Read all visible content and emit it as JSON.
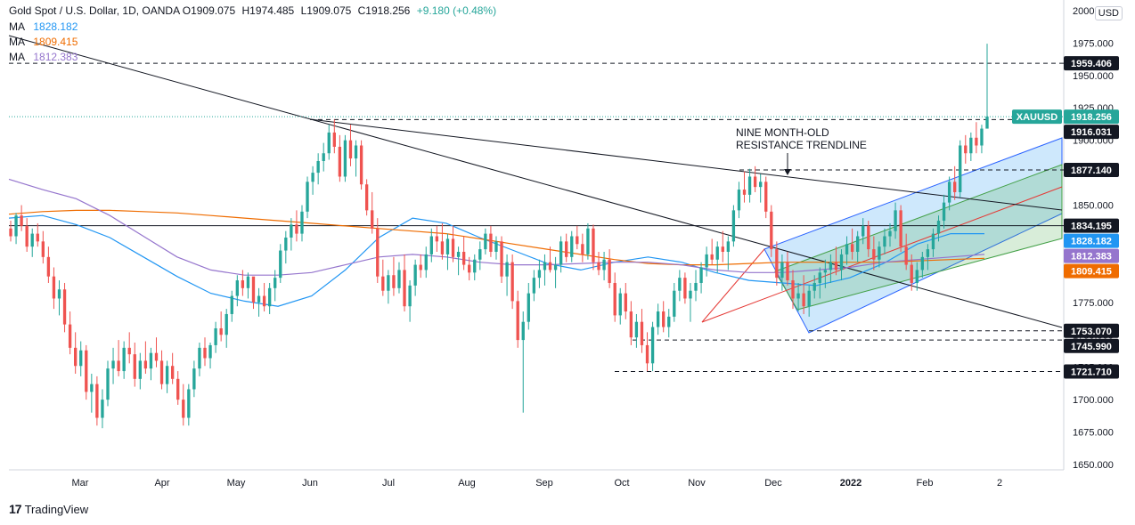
{
  "header": {
    "title": "Gold Spot / U.S. Dollar, 1D, OANDA",
    "o": "O1909.075",
    "h": "H1974.485",
    "l": "L1909.075",
    "c": "C1918.256",
    "change": "+9.180 (+0.48%)",
    "change_color": "#26a69a"
  },
  "ma_legend": [
    {
      "label": "MA",
      "value": "1828.182",
      "color": "#2196f3"
    },
    {
      "label": "MA",
      "value": "1809.415",
      "color": "#ef6c00"
    },
    {
      "label": "MA",
      "value": "1812.383",
      "color": "#9575cd"
    }
  ],
  "currency": "USD",
  "annotation": [
    "NINE MONTH-OLD",
    "RESISTANCE TRENDLINE"
  ],
  "watermark": "TradingView",
  "chart_data": {
    "type": "candlestick",
    "symbol": "XAUUSD",
    "y_axis": {
      "min": 1650,
      "max": 2000,
      "ticks": [
        "1650.000",
        "1675.000",
        "1700.000",
        "1725.000",
        "1750.000",
        "1775.000",
        "1800.000",
        "1825.000",
        "1850.000",
        "1875.000",
        "1900.000",
        "1925.000",
        "1950.000",
        "1975.000",
        "2000.000"
      ]
    },
    "x_labels": [
      "Mar",
      "Apr",
      "May",
      "Jun",
      "Jul",
      "Aug",
      "Sep",
      "Oct",
      "Nov",
      "Dec",
      "2022",
      "Feb",
      "2"
    ],
    "last_price": 1918.256,
    "price_labels": [
      {
        "text": "1959.406",
        "value": 1959.406,
        "style": "dark"
      },
      {
        "text": "1918.256",
        "value": 1918.256,
        "style": "green",
        "tag": "XAUUSD"
      },
      {
        "text": "1916.031",
        "value": 1916.031,
        "style": "dark"
      },
      {
        "text": "1877.140",
        "value": 1877.14,
        "style": "dark"
      },
      {
        "text": "1834.195",
        "value": 1834.195,
        "style": "dark"
      },
      {
        "text": "1828.182",
        "value": 1828.182,
        "style": "blue"
      },
      {
        "text": "1812.383",
        "value": 1812.383,
        "style": "purple"
      },
      {
        "text": "1809.415",
        "value": 1809.415,
        "style": "orange"
      },
      {
        "text": "1753.070",
        "value": 1753.07,
        "style": "dark"
      },
      {
        "text": "1745.990",
        "value": 1745.99,
        "style": "dark"
      },
      {
        "text": "1721.710",
        "value": 1721.71,
        "style": "dark"
      }
    ],
    "candles": [
      [
        1832,
        1838,
        1822,
        1826
      ],
      [
        1826,
        1844,
        1820,
        1842
      ],
      [
        1842,
        1850,
        1830,
        1834
      ],
      [
        1834,
        1840,
        1814,
        1818
      ],
      [
        1818,
        1832,
        1810,
        1828
      ],
      [
        1828,
        1836,
        1818,
        1822
      ],
      [
        1822,
        1830,
        1805,
        1810
      ],
      [
        1810,
        1818,
        1790,
        1795
      ],
      [
        1795,
        1802,
        1770,
        1778
      ],
      [
        1778,
        1792,
        1765,
        1785
      ],
      [
        1785,
        1790,
        1752,
        1758
      ],
      [
        1758,
        1768,
        1735,
        1740
      ],
      [
        1740,
        1752,
        1720,
        1726
      ],
      [
        1726,
        1745,
        1718,
        1738
      ],
      [
        1738,
        1742,
        1700,
        1706
      ],
      [
        1706,
        1720,
        1690,
        1712
      ],
      [
        1712,
        1718,
        1680,
        1686
      ],
      [
        1686,
        1708,
        1678,
        1700
      ],
      [
        1700,
        1730,
        1695,
        1724
      ],
      [
        1724,
        1740,
        1712,
        1730
      ],
      [
        1730,
        1746,
        1718,
        1722
      ],
      [
        1722,
        1745,
        1716,
        1740
      ],
      [
        1740,
        1752,
        1728,
        1735
      ],
      [
        1735,
        1744,
        1710,
        1716
      ],
      [
        1716,
        1736,
        1708,
        1730
      ],
      [
        1730,
        1745,
        1720,
        1724
      ],
      [
        1724,
        1740,
        1715,
        1736
      ],
      [
        1736,
        1748,
        1725,
        1730
      ],
      [
        1730,
        1738,
        1708,
        1712
      ],
      [
        1712,
        1730,
        1705,
        1726
      ],
      [
        1726,
        1736,
        1712,
        1716
      ],
      [
        1716,
        1722,
        1696,
        1700
      ],
      [
        1700,
        1712,
        1680,
        1686
      ],
      [
        1686,
        1712,
        1680,
        1708
      ],
      [
        1708,
        1730,
        1702,
        1724
      ],
      [
        1724,
        1744,
        1718,
        1740
      ],
      [
        1740,
        1748,
        1726,
        1732
      ],
      [
        1732,
        1744,
        1724,
        1742
      ],
      [
        1742,
        1760,
        1736,
        1755
      ],
      [
        1755,
        1768,
        1745,
        1750
      ],
      [
        1750,
        1770,
        1740,
        1766
      ],
      [
        1766,
        1784,
        1760,
        1780
      ],
      [
        1780,
        1796,
        1772,
        1792
      ],
      [
        1792,
        1800,
        1780,
        1786
      ],
      [
        1786,
        1798,
        1778,
        1795
      ],
      [
        1795,
        1792,
        1770,
        1775
      ],
      [
        1775,
        1786,
        1764,
        1780
      ],
      [
        1780,
        1790,
        1768,
        1772
      ],
      [
        1772,
        1790,
        1766,
        1786
      ],
      [
        1786,
        1800,
        1776,
        1794
      ],
      [
        1794,
        1820,
        1790,
        1815
      ],
      [
        1815,
        1830,
        1805,
        1825
      ],
      [
        1825,
        1840,
        1815,
        1835
      ],
      [
        1835,
        1846,
        1822,
        1828
      ],
      [
        1828,
        1850,
        1822,
        1845
      ],
      [
        1845,
        1872,
        1840,
        1868
      ],
      [
        1868,
        1880,
        1858,
        1875
      ],
      [
        1875,
        1890,
        1866,
        1884
      ],
      [
        1884,
        1898,
        1876,
        1890
      ],
      [
        1890,
        1912,
        1885,
        1906
      ],
      [
        1906,
        1916,
        1890,
        1895
      ],
      [
        1895,
        1904,
        1868,
        1872
      ],
      [
        1872,
        1904,
        1868,
        1900
      ],
      [
        1900,
        1912,
        1880,
        1886
      ],
      [
        1886,
        1900,
        1872,
        1896
      ],
      [
        1896,
        1900,
        1862,
        1866
      ],
      [
        1866,
        1870,
        1842,
        1846
      ],
      [
        1846,
        1860,
        1828,
        1832
      ],
      [
        1832,
        1840,
        1790,
        1795
      ],
      [
        1795,
        1808,
        1780,
        1784
      ],
      [
        1784,
        1800,
        1774,
        1796
      ],
      [
        1796,
        1810,
        1780,
        1786
      ],
      [
        1786,
        1806,
        1782,
        1800
      ],
      [
        1800,
        1812,
        1768,
        1772
      ],
      [
        1772,
        1792,
        1760,
        1788
      ],
      [
        1788,
        1808,
        1780,
        1804
      ],
      [
        1804,
        1812,
        1794,
        1800
      ],
      [
        1800,
        1818,
        1794,
        1812
      ],
      [
        1812,
        1832,
        1806,
        1826
      ],
      [
        1826,
        1834,
        1814,
        1822
      ],
      [
        1822,
        1836,
        1808,
        1812
      ],
      [
        1812,
        1828,
        1800,
        1824
      ],
      [
        1824,
        1834,
        1806,
        1810
      ],
      [
        1810,
        1818,
        1796,
        1814
      ],
      [
        1814,
        1826,
        1800,
        1804
      ],
      [
        1804,
        1810,
        1792,
        1798
      ],
      [
        1798,
        1812,
        1792,
        1808
      ],
      [
        1808,
        1822,
        1800,
        1816
      ],
      [
        1816,
        1832,
        1812,
        1828
      ],
      [
        1828,
        1834,
        1810,
        1814
      ],
      [
        1814,
        1826,
        1808,
        1822
      ],
      [
        1822,
        1826,
        1790,
        1795
      ],
      [
        1795,
        1812,
        1780,
        1806
      ],
      [
        1806,
        1812,
        1770,
        1776
      ],
      [
        1776,
        1784,
        1740,
        1746
      ],
      [
        1746,
        1768,
        1690,
        1760
      ],
      [
        1760,
        1790,
        1754,
        1782
      ],
      [
        1782,
        1800,
        1776,
        1794
      ],
      [
        1794,
        1808,
        1786,
        1800
      ],
      [
        1800,
        1812,
        1788,
        1806
      ],
      [
        1806,
        1818,
        1798,
        1800
      ],
      [
        1800,
        1810,
        1786,
        1804
      ],
      [
        1804,
        1826,
        1798,
        1822
      ],
      [
        1822,
        1828,
        1806,
        1810
      ],
      [
        1810,
        1830,
        1806,
        1826
      ],
      [
        1826,
        1834,
        1816,
        1820
      ],
      [
        1820,
        1828,
        1806,
        1812
      ],
      [
        1812,
        1836,
        1808,
        1832
      ],
      [
        1832,
        1835,
        1800,
        1806
      ],
      [
        1806,
        1814,
        1796,
        1800
      ],
      [
        1800,
        1814,
        1792,
        1808
      ],
      [
        1808,
        1816,
        1786,
        1790
      ],
      [
        1790,
        1798,
        1760,
        1765
      ],
      [
        1765,
        1786,
        1758,
        1782
      ],
      [
        1782,
        1790,
        1762,
        1768
      ],
      [
        1768,
        1776,
        1742,
        1748
      ],
      [
        1748,
        1766,
        1740,
        1760
      ],
      [
        1760,
        1770,
        1736,
        1742
      ],
      [
        1742,
        1752,
        1722,
        1728
      ],
      [
        1728,
        1760,
        1722,
        1756
      ],
      [
        1756,
        1774,
        1750,
        1768
      ],
      [
        1768,
        1776,
        1752,
        1756
      ],
      [
        1756,
        1770,
        1748,
        1764
      ],
      [
        1764,
        1790,
        1760,
        1784
      ],
      [
        1784,
        1800,
        1776,
        1794
      ],
      [
        1794,
        1798,
        1774,
        1778
      ],
      [
        1778,
        1790,
        1760,
        1784
      ],
      [
        1784,
        1800,
        1776,
        1790
      ],
      [
        1790,
        1806,
        1782,
        1802
      ],
      [
        1802,
        1818,
        1795,
        1812
      ],
      [
        1812,
        1824,
        1804,
        1808
      ],
      [
        1808,
        1822,
        1798,
        1818
      ],
      [
        1818,
        1830,
        1806,
        1814
      ],
      [
        1814,
        1826,
        1800,
        1822
      ],
      [
        1822,
        1850,
        1818,
        1846
      ],
      [
        1846,
        1868,
        1840,
        1862
      ],
      [
        1862,
        1876,
        1852,
        1858
      ],
      [
        1858,
        1878,
        1852,
        1872
      ],
      [
        1872,
        1880,
        1860,
        1864
      ],
      [
        1864,
        1874,
        1852,
        1868
      ],
      [
        1868,
        1872,
        1840,
        1845
      ],
      [
        1845,
        1850,
        1810,
        1816
      ],
      [
        1816,
        1822,
        1788,
        1794
      ],
      [
        1794,
        1812,
        1784,
        1806
      ],
      [
        1806,
        1814,
        1788,
        1792
      ],
      [
        1792,
        1800,
        1770,
        1778
      ],
      [
        1778,
        1790,
        1768,
        1782
      ],
      [
        1782,
        1796,
        1766,
        1772
      ],
      [
        1772,
        1788,
        1764,
        1784
      ],
      [
        1784,
        1796,
        1778,
        1790
      ],
      [
        1790,
        1802,
        1778,
        1798
      ],
      [
        1798,
        1808,
        1786,
        1800
      ],
      [
        1800,
        1812,
        1790,
        1806
      ],
      [
        1806,
        1818,
        1796,
        1800
      ],
      [
        1800,
        1816,
        1792,
        1812
      ],
      [
        1812,
        1826,
        1804,
        1820
      ],
      [
        1820,
        1832,
        1808,
        1814
      ],
      [
        1814,
        1830,
        1806,
        1826
      ],
      [
        1826,
        1840,
        1820,
        1834
      ],
      [
        1834,
        1838,
        1810,
        1816
      ],
      [
        1816,
        1826,
        1800,
        1808
      ],
      [
        1808,
        1822,
        1802,
        1818
      ],
      [
        1818,
        1832,
        1812,
        1826
      ],
      [
        1826,
        1836,
        1818,
        1830
      ],
      [
        1830,
        1852,
        1824,
        1846
      ],
      [
        1846,
        1850,
        1814,
        1818
      ],
      [
        1818,
        1828,
        1800,
        1804
      ],
      [
        1804,
        1812,
        1784,
        1790
      ],
      [
        1790,
        1806,
        1784,
        1800
      ],
      [
        1800,
        1814,
        1794,
        1810
      ],
      [
        1810,
        1820,
        1800,
        1816
      ],
      [
        1816,
        1832,
        1810,
        1828
      ],
      [
        1828,
        1842,
        1822,
        1838
      ],
      [
        1838,
        1858,
        1832,
        1852
      ],
      [
        1852,
        1872,
        1846,
        1868
      ],
      [
        1868,
        1880,
        1854,
        1860
      ],
      [
        1860,
        1900,
        1856,
        1896
      ],
      [
        1896,
        1904,
        1882,
        1890
      ],
      [
        1890,
        1906,
        1884,
        1902
      ],
      [
        1902,
        1914,
        1890,
        1896
      ],
      [
        1896,
        1912,
        1890,
        1909
      ],
      [
        1909,
        1974.485,
        1909,
        1918.256
      ]
    ],
    "moving_averages": [
      {
        "label": "MA",
        "value": 1828.182,
        "color": "#2196f3",
        "points": [
          1840,
          1842,
          1835,
          1825,
          1810,
          1795,
          1782,
          1776,
          1772,
          1780,
          1800,
          1825,
          1840,
          1836,
          1825,
          1815,
          1805,
          1800,
          1806,
          1810,
          1806,
          1798,
          1792,
          1790,
          1788,
          1794,
          1805,
          1820,
          1828,
          1828
        ]
      },
      {
        "label": "MA",
        "value": 1809.415,
        "color": "#ef6c00",
        "points": [
          1843,
          1845,
          1846,
          1846,
          1845,
          1844,
          1842,
          1840,
          1838,
          1836,
          1834,
          1832,
          1830,
          1828,
          1824,
          1820,
          1816,
          1812,
          1808,
          1805,
          1804,
          1804,
          1805,
          1806,
          1806,
          1806,
          1806,
          1807,
          1808,
          1809
        ]
      },
      {
        "label": "MA",
        "value": 1812.383,
        "color": "#9575cd",
        "points": [
          1870,
          1862,
          1855,
          1842,
          1826,
          1810,
          1800,
          1796,
          1796,
          1798,
          1804,
          1810,
          1812,
          1810,
          1806,
          1804,
          1804,
          1805,
          1806,
          1806,
          1804,
          1800,
          1798,
          1798,
          1800,
          1802,
          1806,
          1808,
          1810,
          1812
        ]
      }
    ],
    "horizontal_levels": [
      1959.406,
      1916.031,
      1877.14,
      1834.195,
      1753.07,
      1745.99,
      1721.71
    ]
  }
}
